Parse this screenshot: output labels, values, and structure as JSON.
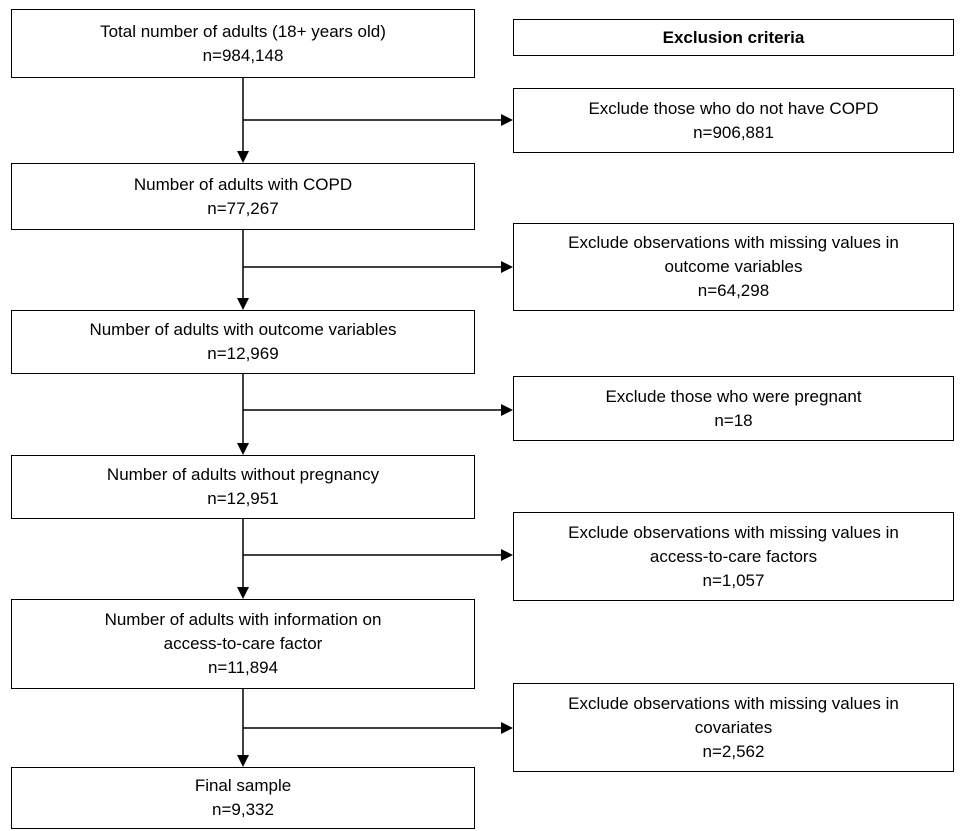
{
  "exclusion_header": "Exclusion criteria",
  "main_steps": [
    {
      "lines": [
        "Total number of adults (18+ years old)",
        "n=984,148"
      ]
    },
    {
      "lines": [
        "Number of adults with COPD",
        "n=77,267"
      ]
    },
    {
      "lines": [
        "Number of adults with outcome variables",
        "n=12,969"
      ]
    },
    {
      "lines": [
        "Number of adults without pregnancy",
        "n=12,951"
      ]
    },
    {
      "lines": [
        "Number of adults with information on",
        "access-to-care factor",
        "n=11,894"
      ]
    },
    {
      "lines": [
        "Final sample",
        "n=9,332"
      ]
    }
  ],
  "exclusions": [
    {
      "lines": [
        "Exclude those who do not have COPD",
        "n=906,881"
      ]
    },
    {
      "lines": [
        "Exclude observations with missing values in",
        "outcome variables",
        "n=64,298"
      ]
    },
    {
      "lines": [
        "Exclude those who were pregnant",
        "n=18"
      ]
    },
    {
      "lines": [
        "Exclude observations with missing values in",
        "access-to-care factors",
        "n=1,057"
      ]
    },
    {
      "lines": [
        "Exclude observations with missing values in",
        "covariates",
        "n=2,562"
      ]
    }
  ]
}
